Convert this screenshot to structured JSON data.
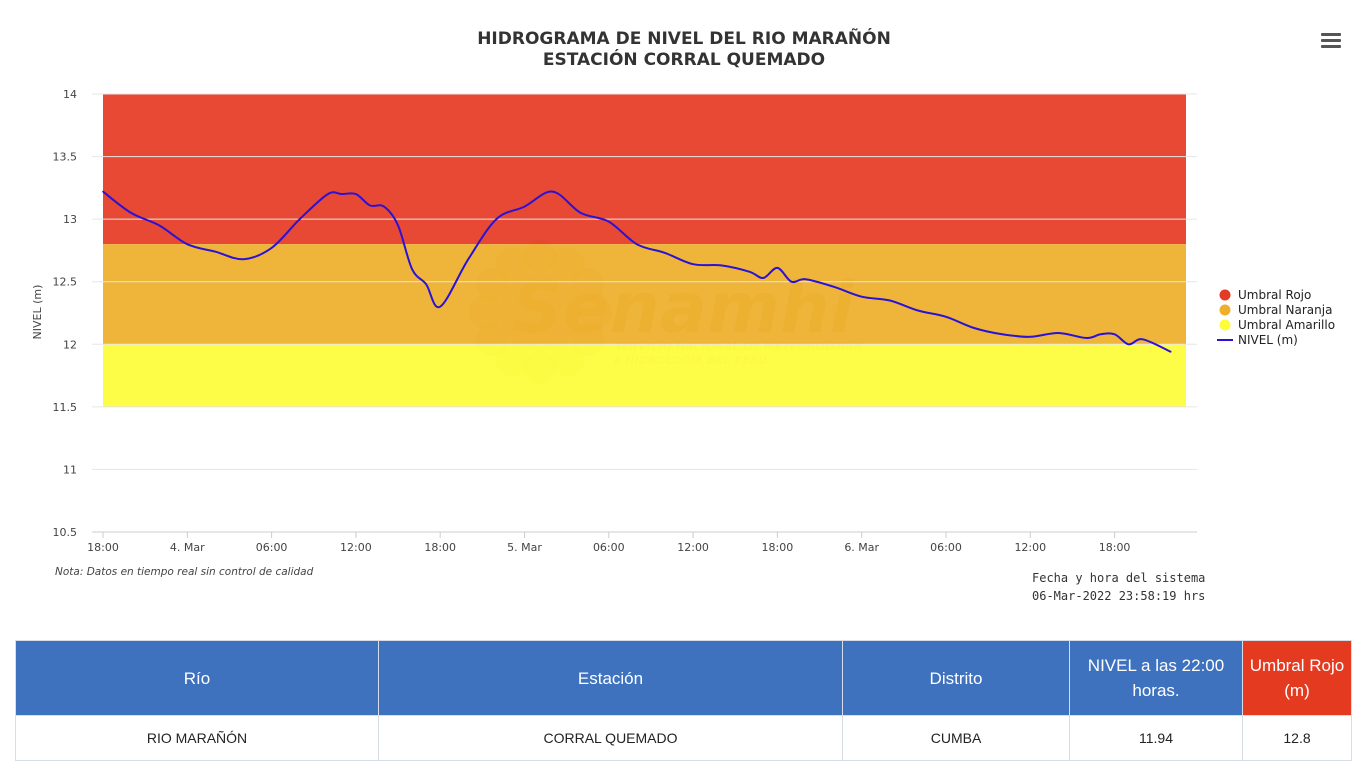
{
  "chart_data": {
    "type": "line",
    "title": "HIDROGRAMA DE NIVEL DEL RIO MARAÑÓN",
    "subtitle": "ESTACIÓN CORRAL QUEMADO",
    "ylabel": "NIVEL (m)",
    "xlabel": "",
    "ylim": [
      10.5,
      14
    ],
    "yticks": [
      "14",
      "13.5",
      "13",
      "12.5",
      "12",
      "11.5",
      "11",
      "10.5"
    ],
    "xticks": [
      "18:00",
      "4. Mar",
      "06:00",
      "12:00",
      "18:00",
      "5. Mar",
      "06:00",
      "12:00",
      "18:00",
      "6. Mar",
      "06:00",
      "12:00",
      "18:00"
    ],
    "grid": true,
    "legend_position": "right",
    "bands": [
      {
        "name": "Umbral Rojo",
        "from": 12.8,
        "to": 14,
        "color": "#e53b25"
      },
      {
        "name": "Umbral Naranja",
        "from": 12.0,
        "to": 12.8,
        "color": "#eeaf2c"
      },
      {
        "name": "Umbral Amarillo",
        "from": 11.5,
        "to": 12.0,
        "color": "#fdfd3a"
      }
    ],
    "series": [
      {
        "name": "NIVEL (m)",
        "color": "#2a12d6",
        "x": [
          "03-Mar 18:00",
          "03-Mar 20:00",
          "03-Mar 22:00",
          "04-Mar 00:00",
          "04-Mar 02:00",
          "04-Mar 04:00",
          "04-Mar 06:00",
          "04-Mar 08:00",
          "04-Mar 10:00",
          "04-Mar 11:00",
          "04-Mar 12:00",
          "04-Mar 13:00",
          "04-Mar 14:00",
          "04-Mar 15:00",
          "04-Mar 16:00",
          "04-Mar 17:00",
          "04-Mar 18:00",
          "04-Mar 20:00",
          "04-Mar 22:00",
          "05-Mar 00:00",
          "05-Mar 02:00",
          "05-Mar 04:00",
          "05-Mar 06:00",
          "05-Mar 08:00",
          "05-Mar 10:00",
          "05-Mar 12:00",
          "05-Mar 14:00",
          "05-Mar 16:00",
          "05-Mar 17:00",
          "05-Mar 18:00",
          "05-Mar 19:00",
          "05-Mar 20:00",
          "05-Mar 22:00",
          "06-Mar 00:00",
          "06-Mar 02:00",
          "06-Mar 04:00",
          "06-Mar 06:00",
          "06-Mar 08:00",
          "06-Mar 10:00",
          "06-Mar 12:00",
          "06-Mar 14:00",
          "06-Mar 16:00",
          "06-Mar 17:00",
          "06-Mar 18:00",
          "06-Mar 19:00",
          "06-Mar 20:00",
          "06-Mar 22:00"
        ],
        "values": [
          13.22,
          13.05,
          12.95,
          12.8,
          12.74,
          12.68,
          12.77,
          13.0,
          13.2,
          13.2,
          13.2,
          13.11,
          13.1,
          12.95,
          12.6,
          12.48,
          12.3,
          12.68,
          13.0,
          13.1,
          13.22,
          13.05,
          12.98,
          12.8,
          12.73,
          12.64,
          12.63,
          12.58,
          12.53,
          12.61,
          12.5,
          12.52,
          12.46,
          12.38,
          12.35,
          12.27,
          12.22,
          12.13,
          12.08,
          12.06,
          12.09,
          12.05,
          12.08,
          12.08,
          12.0,
          12.04,
          11.94
        ]
      }
    ]
  },
  "watermark": {
    "brand": "Senamhi",
    "line1": "SERVICIO NACIONAL DE METEOROLOGÍA",
    "line2": "E HIDROLOGÍA DEL PERÚ"
  },
  "note": "Nota: Datos en tiempo real sin control de calidad",
  "system_time": {
    "label": "Fecha y hora del sistema",
    "value": "06-Mar-2022 23:58:19 hrs"
  },
  "menu_icon": "hamburger-menu-icon",
  "table": {
    "headers": [
      "Río",
      "Estación",
      "Distrito",
      "NIVEL a las 22:00 horas.",
      "Umbral Rojo (m)"
    ],
    "row": [
      "RIO MARAÑÓN",
      "CORRAL QUEMADO",
      "CUMBA",
      "11.94",
      "12.8"
    ],
    "highlight_color": "#e43a20",
    "header_color": "#3e72bf"
  }
}
